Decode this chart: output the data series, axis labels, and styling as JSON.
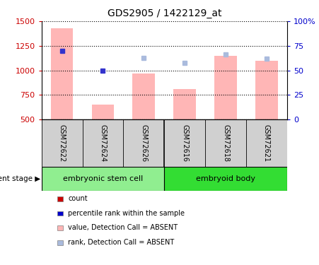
{
  "title": "GDS2905 / 1422129_at",
  "samples": [
    "GSM72622",
    "GSM72624",
    "GSM72626",
    "GSM72616",
    "GSM72618",
    "GSM72621"
  ],
  "bar_values": [
    1430,
    650,
    970,
    810,
    1150,
    1100
  ],
  "bar_color": "#ffb6b6",
  "dot_values": [
    1200,
    1000,
    1130,
    1075,
    1160,
    1120
  ],
  "dot_color_dark": "#3333cc",
  "dot_color_light": "#aabbdd",
  "dot_absent": [
    true,
    true,
    true,
    true,
    true,
    true
  ],
  "ylim_left": [
    500,
    1500
  ],
  "ylim_right": [
    0,
    100
  ],
  "yticks_left": [
    500,
    750,
    1000,
    1250,
    1500
  ],
  "yticks_right": [
    0,
    25,
    50,
    75,
    100
  ],
  "ytick_labels_right": [
    "0",
    "25",
    "50",
    "75",
    "100%"
  ],
  "group1_label": "embryonic stem cell",
  "group2_label": "embryoid body",
  "group1_color": "#90ee90",
  "group2_color": "#33dd33",
  "stage_label": "development stage",
  "legend_items": [
    {
      "label": "count",
      "color": "#cc0000"
    },
    {
      "label": "percentile rank within the sample",
      "color": "#0000cc"
    },
    {
      "label": "value, Detection Call = ABSENT",
      "color": "#ffb6b6"
    },
    {
      "label": "rank, Detection Call = ABSENT",
      "color": "#aabbdd"
    }
  ],
  "bar_bottom": 500,
  "left_tick_color": "#cc0000",
  "right_tick_color": "#0000cc",
  "table_bg": "#d0d0d0"
}
